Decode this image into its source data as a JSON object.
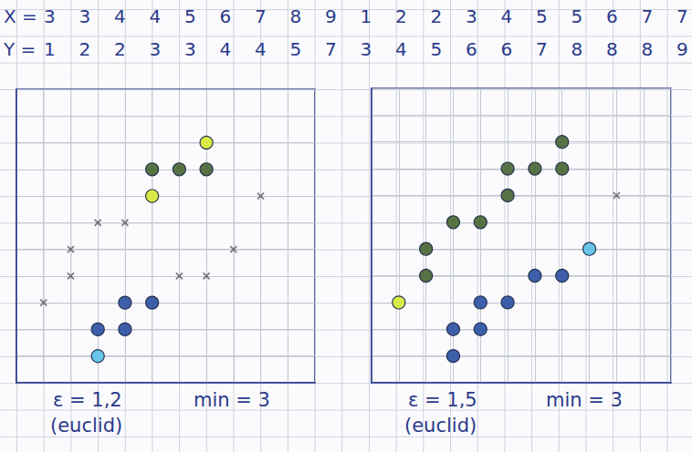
{
  "header": {
    "rows": [
      {
        "label": "X =",
        "values": [
          3,
          3,
          4,
          4,
          5,
          6,
          7,
          8,
          9,
          1,
          2,
          2,
          3,
          4,
          5,
          5,
          6,
          7,
          7
        ]
      },
      {
        "label": "Y =",
        "values": [
          1,
          2,
          2,
          3,
          3,
          4,
          4,
          5,
          7,
          3,
          4,
          5,
          6,
          6,
          7,
          8,
          8,
          8,
          9
        ]
      }
    ]
  },
  "chart_data": [
    {
      "type": "scatter",
      "annotations": [
        "ε = 1,2",
        "min = 3",
        "(euclid)"
      ],
      "xlim": [
        0,
        11
      ],
      "ylim": [
        0,
        11
      ],
      "xticks": [
        0,
        1,
        2,
        3,
        4,
        5,
        6,
        7,
        8,
        9,
        10,
        11
      ],
      "yticks": [
        0,
        1,
        2,
        3,
        4,
        5,
        6,
        7,
        8,
        9,
        10,
        11
      ],
      "grid": true,
      "tick_labels": false,
      "series": [
        {
          "color": "#3457a6",
          "marker": "circle",
          "x": [
            3,
            4,
            4,
            5
          ],
          "values": [
            2,
            2,
            3,
            3
          ]
        },
        {
          "color": "#62c3e6",
          "marker": "circle",
          "x": [
            3
          ],
          "values": [
            1
          ]
        },
        {
          "color": "#4f6b3a",
          "marker": "circle",
          "x": [
            5,
            6,
            7
          ],
          "values": [
            8,
            8,
            8
          ]
        },
        {
          "color": "#d6ea3c",
          "marker": "circle",
          "x": [
            7,
            5
          ],
          "values": [
            9,
            7
          ]
        },
        {
          "color": "#555555",
          "marker": "x",
          "x": [
            1,
            2,
            2,
            3,
            4,
            6,
            7,
            8,
            9
          ],
          "values": [
            3,
            4,
            5,
            6,
            6,
            4,
            4,
            5,
            7
          ]
        }
      ]
    },
    {
      "type": "scatter",
      "annotations": [
        "ε = 1,5",
        "min = 3",
        "(euclid)"
      ],
      "xlim": [
        0,
        11
      ],
      "ylim": [
        0,
        11
      ],
      "xticks": [
        0,
        1,
        2,
        3,
        4,
        5,
        6,
        7,
        8,
        9,
        10,
        11
      ],
      "yticks": [
        0,
        1,
        2,
        3,
        4,
        5,
        6,
        7,
        8,
        9,
        10,
        11
      ],
      "grid": true,
      "tick_labels": false,
      "series": [
        {
          "color": "#3457a6",
          "marker": "circle",
          "x": [
            3,
            4,
            3,
            4,
            5,
            6,
            7
          ],
          "values": [
            2,
            2,
            1,
            3,
            3,
            4,
            4
          ]
        },
        {
          "color": "#62c3e6",
          "marker": "circle",
          "x": [
            8
          ],
          "values": [
            5
          ]
        },
        {
          "color": "#4f6b3a",
          "marker": "circle",
          "x": [
            2,
            2,
            3,
            4,
            5,
            5,
            6,
            7,
            7
          ],
          "values": [
            4,
            5,
            6,
            6,
            7,
            8,
            8,
            8,
            9
          ]
        },
        {
          "color": "#d6ea3c",
          "marker": "circle",
          "x": [
            1
          ],
          "values": [
            3
          ]
        },
        {
          "color": "#555555",
          "marker": "x",
          "x": [
            9
          ],
          "values": [
            7
          ]
        }
      ]
    }
  ]
}
